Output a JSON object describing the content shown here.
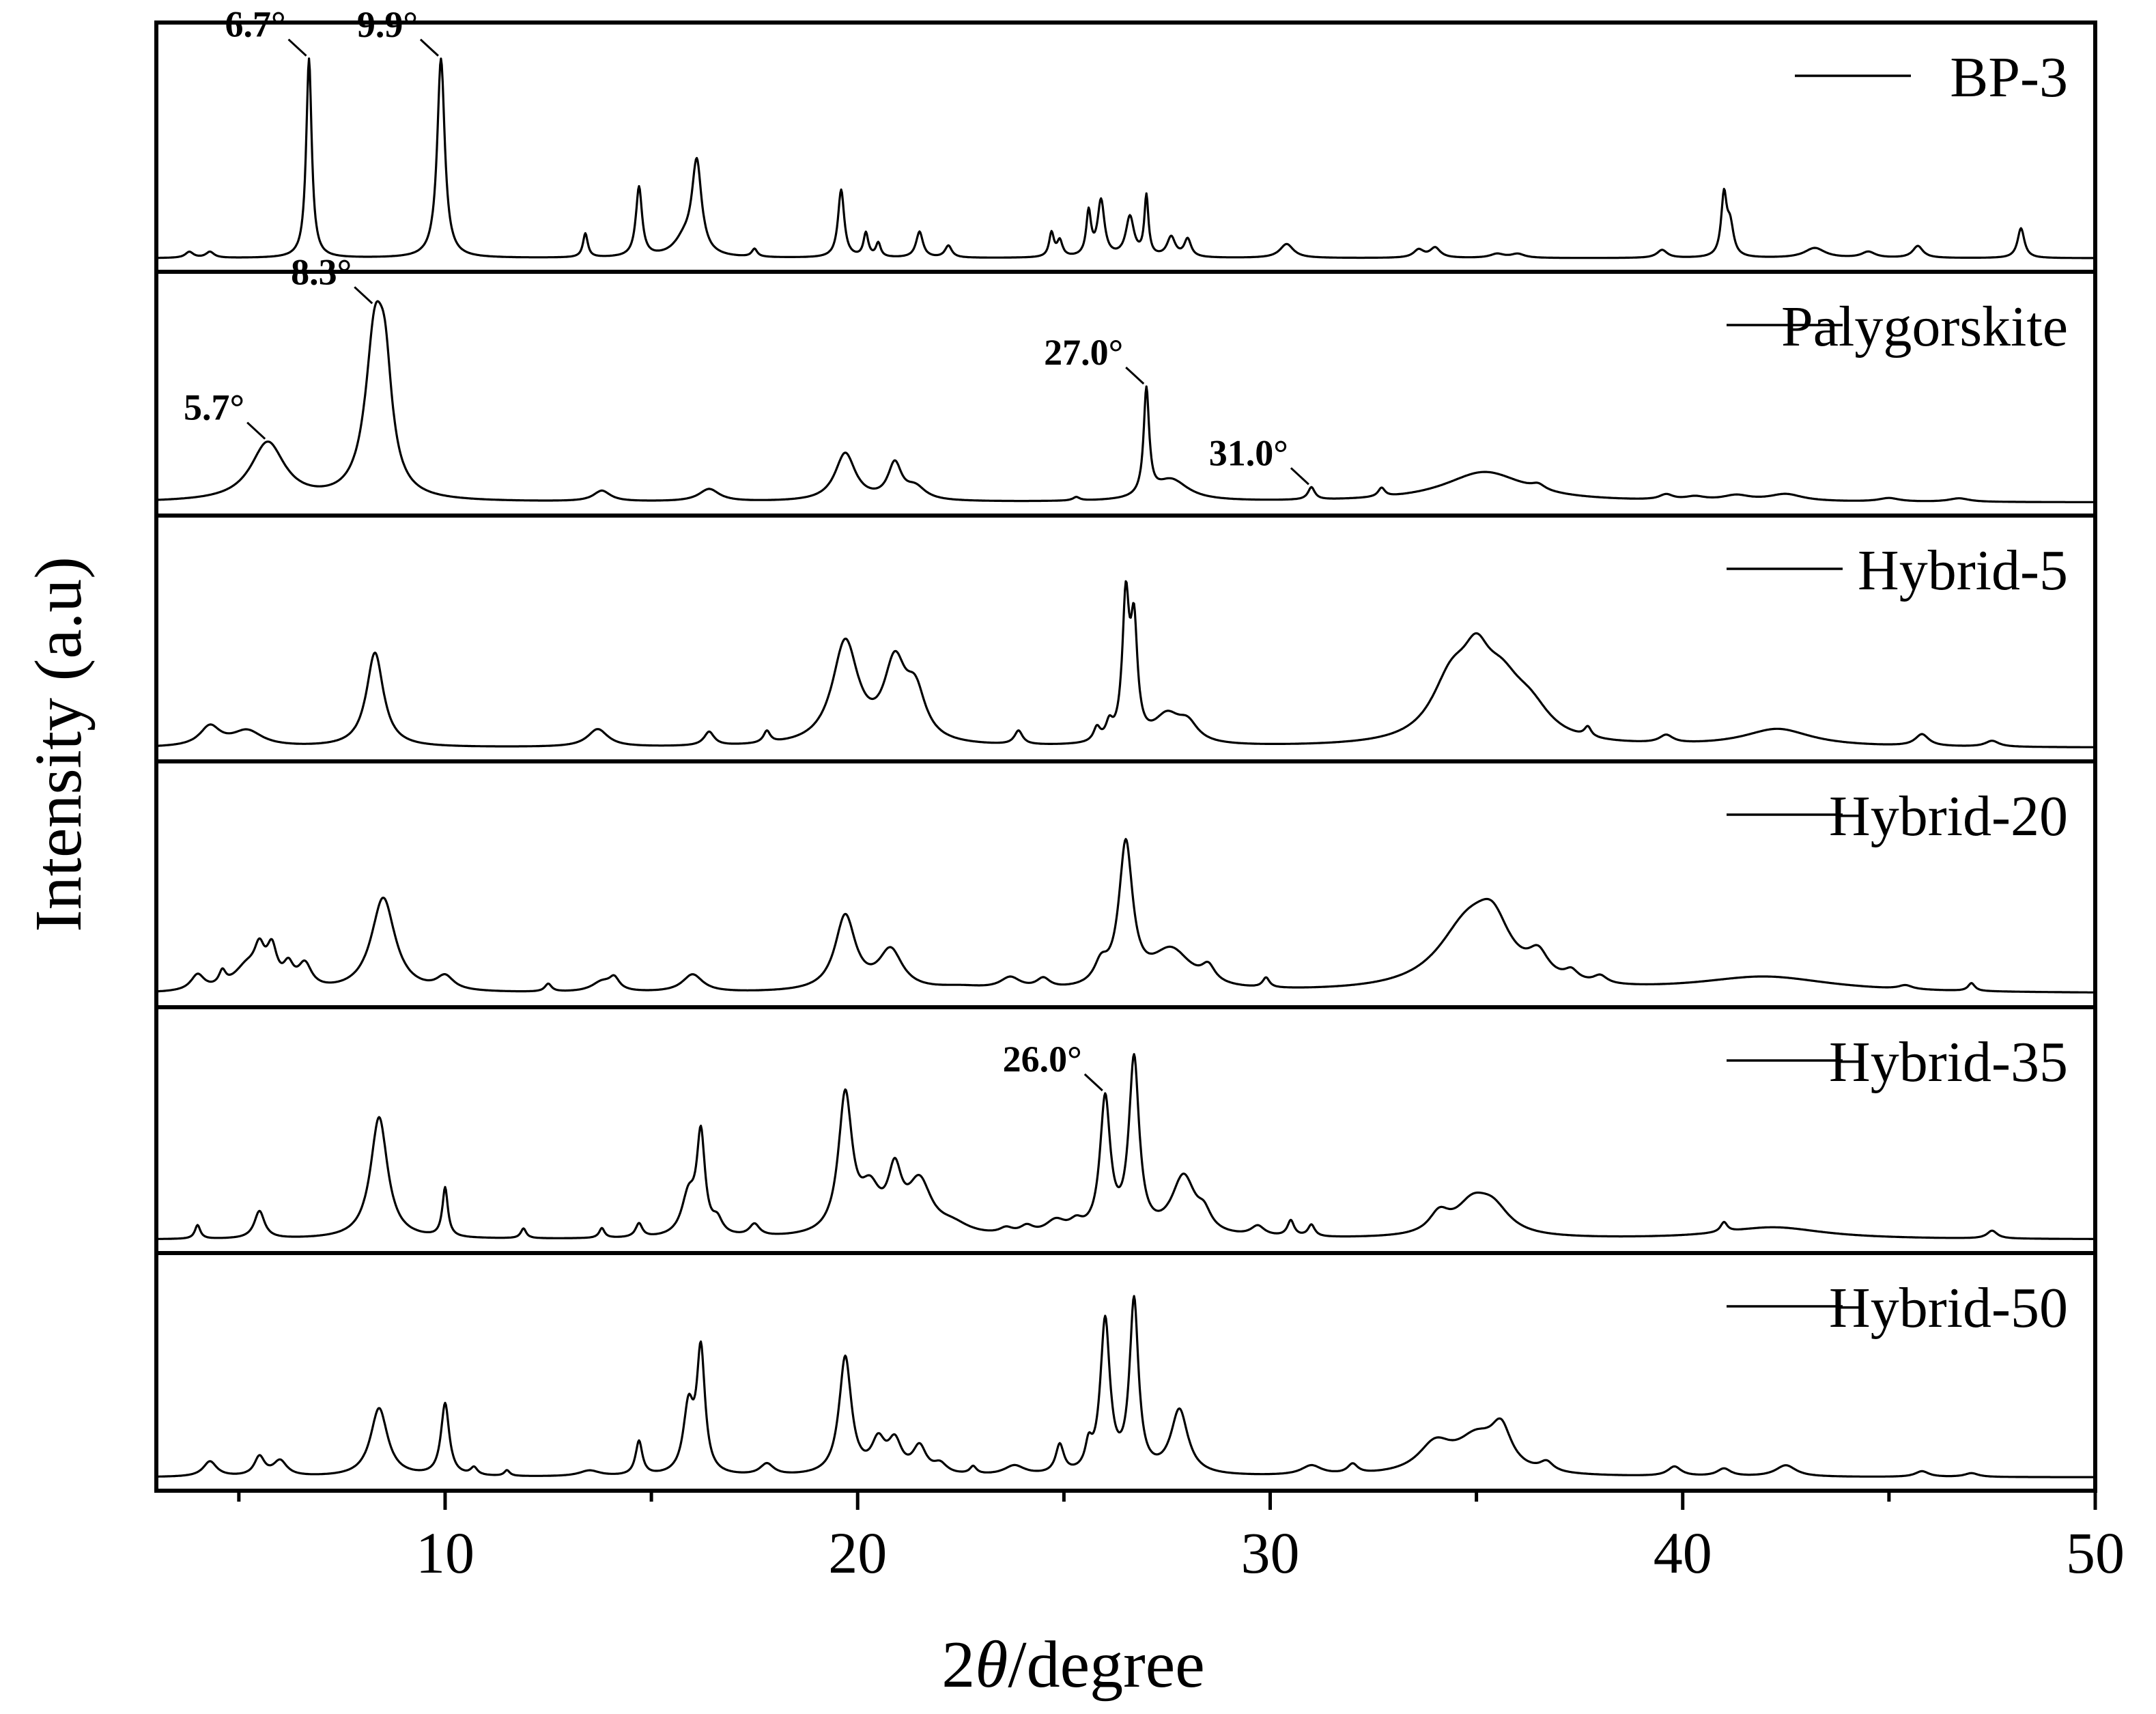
{
  "chart_data": {
    "type": "line",
    "layout": "stacked-panels",
    "xlabel_prefix": "2",
    "xlabel_symbol": "θ",
    "xlabel_suffix": "/degree",
    "ylabel": "Intensity (a.u)",
    "xlim": [
      3,
      50
    ],
    "xticks": [
      10,
      20,
      30,
      40,
      50
    ],
    "minor_xticks": [
      5,
      15,
      25,
      35,
      45
    ],
    "legend_position": "top-right of each panel",
    "grid": false,
    "series": [
      {
        "name": "BP-3",
        "baseline": 0.02,
        "peaks": [
          [
            3.8,
            0.03,
            0.12
          ],
          [
            4.3,
            0.03,
            0.12
          ],
          [
            6.7,
            1.0,
            0.08
          ],
          [
            9.9,
            1.0,
            0.11
          ],
          [
            13.4,
            0.12,
            0.07
          ],
          [
            14.7,
            0.35,
            0.09
          ],
          [
            16.1,
            0.46,
            0.14
          ],
          [
            15.8,
            0.08,
            0.3
          ],
          [
            17.5,
            0.04,
            0.08
          ],
          [
            19.6,
            0.34,
            0.09
          ],
          [
            20.2,
            0.12,
            0.07
          ],
          [
            20.5,
            0.07,
            0.07
          ],
          [
            21.5,
            0.13,
            0.1
          ],
          [
            22.2,
            0.06,
            0.1
          ],
          [
            24.7,
            0.12,
            0.07
          ],
          [
            24.9,
            0.08,
            0.08
          ],
          [
            25.6,
            0.22,
            0.07
          ],
          [
            25.9,
            0.28,
            0.1
          ],
          [
            26.6,
            0.2,
            0.12
          ],
          [
            27.0,
            0.3,
            0.06
          ],
          [
            27.6,
            0.1,
            0.12
          ],
          [
            28.0,
            0.09,
            0.1
          ],
          [
            30.4,
            0.07,
            0.2
          ],
          [
            33.6,
            0.04,
            0.15
          ],
          [
            34.0,
            0.05,
            0.15
          ],
          [
            35.5,
            0.02,
            0.2
          ],
          [
            36.0,
            0.02,
            0.2
          ],
          [
            39.5,
            0.04,
            0.15
          ],
          [
            41.0,
            0.3,
            0.08
          ],
          [
            41.15,
            0.15,
            0.1
          ],
          [
            43.2,
            0.05,
            0.3
          ],
          [
            44.5,
            0.03,
            0.2
          ],
          [
            45.7,
            0.06,
            0.15
          ],
          [
            48.2,
            0.15,
            0.1
          ]
        ]
      },
      {
        "name": "Palygorskite",
        "baseline": 0.02,
        "peaks": [
          [
            5.7,
            0.33,
            0.5
          ],
          [
            8.3,
            0.9,
            0.28
          ],
          [
            8.55,
            0.5,
            0.2
          ],
          [
            13.8,
            0.06,
            0.25
          ],
          [
            16.4,
            0.07,
            0.3
          ],
          [
            19.7,
            0.27,
            0.3
          ],
          [
            20.9,
            0.2,
            0.2
          ],
          [
            21.4,
            0.07,
            0.3
          ],
          [
            25.3,
            0.02,
            0.1
          ],
          [
            27.0,
            0.6,
            0.08
          ],
          [
            27.6,
            0.12,
            0.5
          ],
          [
            31.0,
            0.07,
            0.1
          ],
          [
            32.7,
            0.05,
            0.1
          ],
          [
            35.2,
            0.17,
            1.2
          ],
          [
            36.5,
            0.03,
            0.2
          ],
          [
            39.6,
            0.03,
            0.2
          ],
          [
            40.3,
            0.02,
            0.3
          ],
          [
            41.3,
            0.03,
            0.4
          ],
          [
            42.5,
            0.04,
            0.5
          ],
          [
            45.0,
            0.02,
            0.3
          ],
          [
            46.7,
            0.02,
            0.3
          ]
        ]
      },
      {
        "name": "Hybrid-5",
        "baseline": 0.02,
        "peaks": [
          [
            4.3,
            0.1,
            0.3
          ],
          [
            5.2,
            0.08,
            0.45
          ],
          [
            8.3,
            0.48,
            0.25
          ],
          [
            13.7,
            0.09,
            0.3
          ],
          [
            16.4,
            0.07,
            0.15
          ],
          [
            17.8,
            0.06,
            0.1
          ],
          [
            19.7,
            0.52,
            0.38
          ],
          [
            20.9,
            0.38,
            0.32
          ],
          [
            21.4,
            0.23,
            0.3
          ],
          [
            23.9,
            0.07,
            0.12
          ],
          [
            25.8,
            0.07,
            0.1
          ],
          [
            26.1,
            0.08,
            0.1
          ],
          [
            26.5,
            0.7,
            0.1
          ],
          [
            26.7,
            0.55,
            0.1
          ],
          [
            27.5,
            0.14,
            0.4
          ],
          [
            28.0,
            0.09,
            0.3
          ],
          [
            34.4,
            0.3,
            0.6
          ],
          [
            35.0,
            0.28,
            0.4
          ],
          [
            35.6,
            0.25,
            0.6
          ],
          [
            36.3,
            0.14,
            0.6
          ],
          [
            37.7,
            0.05,
            0.1
          ],
          [
            39.6,
            0.04,
            0.2
          ],
          [
            42.3,
            0.09,
            1.0
          ],
          [
            45.8,
            0.06,
            0.2
          ],
          [
            47.5,
            0.03,
            0.2
          ]
        ]
      },
      {
        "name": "Hybrid-20",
        "baseline": 0.02,
        "peaks": [
          [
            4.0,
            0.08,
            0.2
          ],
          [
            4.6,
            0.07,
            0.1
          ],
          [
            5.2,
            0.12,
            0.4
          ],
          [
            5.5,
            0.15,
            0.15
          ],
          [
            5.8,
            0.18,
            0.15
          ],
          [
            6.2,
            0.1,
            0.15
          ],
          [
            6.6,
            0.12,
            0.2
          ],
          [
            8.5,
            0.48,
            0.35
          ],
          [
            10.0,
            0.07,
            0.25
          ],
          [
            12.5,
            0.04,
            0.1
          ],
          [
            13.8,
            0.05,
            0.3
          ],
          [
            14.1,
            0.06,
            0.15
          ],
          [
            16.0,
            0.09,
            0.3
          ],
          [
            19.7,
            0.38,
            0.3
          ],
          [
            20.8,
            0.2,
            0.35
          ],
          [
            22.5,
            0.02,
            0.8
          ],
          [
            23.7,
            0.06,
            0.3
          ],
          [
            24.5,
            0.05,
            0.2
          ],
          [
            25.9,
            0.1,
            0.2
          ],
          [
            26.5,
            0.72,
            0.2
          ],
          [
            27.6,
            0.2,
            0.6
          ],
          [
            28.5,
            0.08,
            0.2
          ],
          [
            29.9,
            0.05,
            0.1
          ],
          [
            34.8,
            0.33,
            0.9
          ],
          [
            35.4,
            0.22,
            0.5
          ],
          [
            36.5,
            0.12,
            0.3
          ],
          [
            37.3,
            0.05,
            0.2
          ],
          [
            38.0,
            0.04,
            0.2
          ],
          [
            42.0,
            0.08,
            2.0
          ],
          [
            45.4,
            0.02,
            0.2
          ],
          [
            47.0,
            0.04,
            0.1
          ]
        ]
      },
      {
        "name": "Hybrid-35",
        "baseline": 0.02,
        "peaks": [
          [
            4.0,
            0.07,
            0.08
          ],
          [
            5.5,
            0.14,
            0.15
          ],
          [
            8.4,
            0.62,
            0.25
          ],
          [
            10.0,
            0.25,
            0.08
          ],
          [
            11.9,
            0.05,
            0.08
          ],
          [
            13.8,
            0.05,
            0.08
          ],
          [
            14.7,
            0.07,
            0.1
          ],
          [
            15.9,
            0.2,
            0.2
          ],
          [
            16.2,
            0.5,
            0.12
          ],
          [
            16.6,
            0.07,
            0.15
          ],
          [
            17.5,
            0.06,
            0.15
          ],
          [
            19.7,
            0.7,
            0.2
          ],
          [
            20.3,
            0.2,
            0.3
          ],
          [
            20.9,
            0.28,
            0.2
          ],
          [
            21.5,
            0.26,
            0.35
          ],
          [
            22.3,
            0.05,
            0.5
          ],
          [
            23.6,
            0.03,
            0.2
          ],
          [
            24.1,
            0.04,
            0.2
          ],
          [
            24.8,
            0.07,
            0.3
          ],
          [
            25.3,
            0.05,
            0.2
          ],
          [
            26.0,
            0.68,
            0.15
          ],
          [
            26.7,
            0.88,
            0.15
          ],
          [
            27.9,
            0.3,
            0.35
          ],
          [
            28.4,
            0.08,
            0.2
          ],
          [
            29.7,
            0.05,
            0.2
          ],
          [
            30.5,
            0.08,
            0.1
          ],
          [
            31.0,
            0.06,
            0.1
          ],
          [
            34.1,
            0.1,
            0.3
          ],
          [
            34.9,
            0.15,
            0.5
          ],
          [
            35.4,
            0.13,
            0.5
          ],
          [
            41.0,
            0.05,
            0.1
          ],
          [
            42.2,
            0.06,
            1.5
          ],
          [
            47.5,
            0.04,
            0.15
          ]
        ]
      },
      {
        "name": "Hybrid-50",
        "baseline": 0.02,
        "peaks": [
          [
            4.3,
            0.08,
            0.2
          ],
          [
            5.5,
            0.1,
            0.15
          ],
          [
            6.0,
            0.08,
            0.2
          ],
          [
            8.4,
            0.36,
            0.25
          ],
          [
            10.0,
            0.38,
            0.12
          ],
          [
            10.7,
            0.04,
            0.1
          ],
          [
            11.5,
            0.03,
            0.08
          ],
          [
            13.5,
            0.03,
            0.3
          ],
          [
            14.7,
            0.18,
            0.1
          ],
          [
            15.9,
            0.34,
            0.15
          ],
          [
            16.2,
            0.64,
            0.12
          ],
          [
            17.8,
            0.06,
            0.2
          ],
          [
            19.7,
            0.62,
            0.18
          ],
          [
            20.5,
            0.16,
            0.2
          ],
          [
            20.9,
            0.16,
            0.2
          ],
          [
            21.5,
            0.14,
            0.2
          ],
          [
            22.0,
            0.05,
            0.2
          ],
          [
            22.8,
            0.04,
            0.1
          ],
          [
            23.8,
            0.05,
            0.3
          ],
          [
            24.9,
            0.15,
            0.12
          ],
          [
            25.6,
            0.12,
            0.1
          ],
          [
            26.0,
            0.8,
            0.14
          ],
          [
            26.7,
            0.9,
            0.13
          ],
          [
            27.8,
            0.34,
            0.25
          ],
          [
            31.0,
            0.05,
            0.3
          ],
          [
            32.0,
            0.05,
            0.15
          ],
          [
            34.0,
            0.15,
            0.5
          ],
          [
            35.0,
            0.18,
            0.6
          ],
          [
            35.6,
            0.2,
            0.3
          ],
          [
            36.7,
            0.05,
            0.2
          ],
          [
            39.8,
            0.05,
            0.2
          ],
          [
            41.0,
            0.04,
            0.2
          ],
          [
            42.5,
            0.06,
            0.3
          ],
          [
            45.8,
            0.03,
            0.2
          ],
          [
            47.0,
            0.02,
            0.2
          ]
        ]
      }
    ],
    "annotations": [
      {
        "series": 0,
        "text": "6.7°",
        "x": 6.7
      },
      {
        "series": 0,
        "text": "9.9°",
        "x": 9.9
      },
      {
        "series": 1,
        "text": "5.7°",
        "x": 5.7
      },
      {
        "series": 1,
        "text": "8.3°",
        "x": 8.3
      },
      {
        "series": 1,
        "text": "27.0°",
        "x": 27.0
      },
      {
        "series": 1,
        "text": "31.0°",
        "x": 31.0
      },
      {
        "series": 4,
        "text": "26.0°",
        "x": 26.0
      }
    ]
  }
}
